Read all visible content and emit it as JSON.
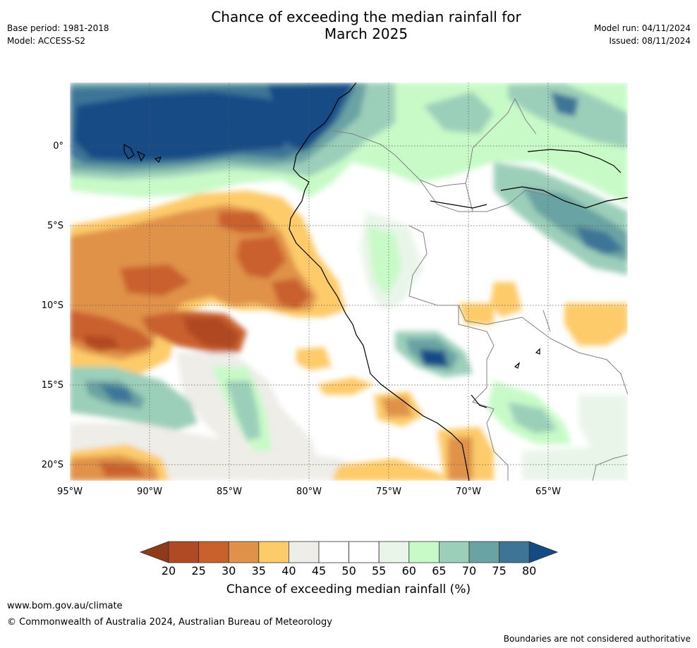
{
  "header": {
    "title_line1": "Chance of exceeding the median rainfall for",
    "title_line2": "March 2025",
    "base_period": "Base period: 1981-2018",
    "model": "Model: ACCESS-S2",
    "model_run": "Model run: 04/11/2024",
    "issued": "Issued: 08/11/2024"
  },
  "map": {
    "lon_range": [
      -95,
      -60
    ],
    "lat_range": [
      -21,
      4
    ],
    "y_ticks": [
      "0°",
      "5°S",
      "10°S",
      "15°S",
      "20°S"
    ],
    "x_ticks": [
      "95°W",
      "90°W",
      "85°W",
      "80°W",
      "75°W",
      "70°W",
      "65°W"
    ],
    "grid": true
  },
  "colorbar": {
    "levels": [
      "20",
      "25",
      "30",
      "35",
      "40",
      "45",
      "50",
      "55",
      "60",
      "65",
      "70",
      "75",
      "80"
    ],
    "colors": [
      "#8f3a1b",
      "#b04a24",
      "#c9612d",
      "#e0924a",
      "#fdcb6a",
      "#eeede8",
      "#ffffff",
      "#ffffff",
      "#eaf5ea",
      "#c8fac8",
      "#9ccfb9",
      "#6aa3a3",
      "#3e7597",
      "#134b86"
    ],
    "label": "Chance of exceeding median rainfall (%)"
  },
  "footer": {
    "url": "www.bom.gov.au/climate",
    "copyright": "© Commonwealth of Australia 2024, Australian Bureau of Meteorology",
    "disclaimer": "Boundaries are not considered authoritative"
  }
}
